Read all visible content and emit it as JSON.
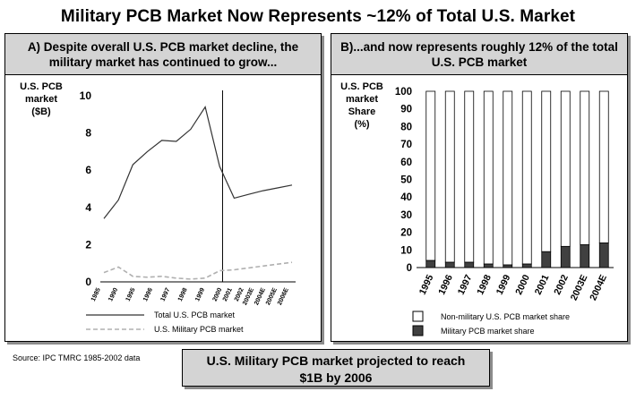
{
  "title": "Military PCB Market Now Represents ~12% of Total U.S. Market",
  "panel_a": {
    "header_line1": "A) Despite overall U.S. PCB market decline, the",
    "header_line2": "military market has continued to grow..."
  },
  "panel_b": {
    "header_line1": "B)...and now represents roughly 12% of the total",
    "header_line2": "U.S. PCB market"
  },
  "source": "Source:   IPC TMRC 1985-2002  data",
  "callout": {
    "line1": "U.S. Military PCB market projected to reach",
    "line2": "$1B by 2006"
  },
  "colors": {
    "panel_header": "#d4d4d4",
    "total_line": "#333333",
    "military_line": "#b0b0b0",
    "military_bar": "#404040",
    "shadow": "#8c8c8c"
  },
  "chart_data": [
    {
      "type": "line",
      "ylabel_lines": [
        "U.S. PCB",
        "market",
        "($B)"
      ],
      "ylim": [
        0,
        10
      ],
      "yticks": [
        0,
        2,
        4,
        6,
        8,
        10
      ],
      "x_categories": [
        "1985",
        "1990",
        "1995",
        "1996",
        "1997",
        "1998",
        "1999",
        "2000",
        "2001",
        "2002",
        "2003E",
        "2004E",
        "2005E",
        "2006E"
      ],
      "x_category_index": [
        0,
        1,
        2,
        3,
        4,
        5,
        6,
        7,
        8,
        9,
        10,
        11,
        12,
        13
      ],
      "x_label_positions": [
        0,
        1.2,
        2.4,
        3.6,
        4.8,
        6.0,
        7.2,
        8.4,
        9.1,
        9.9,
        10.6,
        11.4,
        12.2,
        13.0
      ],
      "divider_x": 8.2,
      "series": [
        {
          "name": "Total U.S. PCB market",
          "style": "solid",
          "points": [
            [
              0,
              3.4
            ],
            [
              1,
              4.4
            ],
            [
              2,
              6.3
            ],
            [
              3,
              7.0
            ],
            [
              4,
              7.6
            ],
            [
              5,
              7.55
            ],
            [
              6,
              8.2
            ],
            [
              7,
              9.4
            ],
            [
              8,
              6.2
            ],
            [
              9,
              4.5
            ],
            [
              10,
              4.7
            ],
            [
              11,
              4.9
            ],
            [
              12,
              5.05
            ],
            [
              13,
              5.2
            ]
          ]
        },
        {
          "name": "U.S. Military PCB market",
          "style": "dashed",
          "points": [
            [
              0,
              0.5
            ],
            [
              1,
              0.8
            ],
            [
              2,
              0.3
            ],
            [
              3,
              0.25
            ],
            [
              4,
              0.3
            ],
            [
              5,
              0.2
            ],
            [
              6,
              0.15
            ],
            [
              7,
              0.2
            ],
            [
              8,
              0.6
            ],
            [
              9,
              0.65
            ],
            [
              10,
              0.75
            ],
            [
              11,
              0.85
            ],
            [
              12,
              0.95
            ],
            [
              13,
              1.05
            ]
          ]
        }
      ],
      "legend": [
        "Total U.S. PCB market",
        "U.S. Military PCB market"
      ],
      "legend_position": "bottom"
    },
    {
      "type": "bar",
      "stacked": true,
      "ylabel_lines": [
        "U.S. PCB",
        "market",
        "Share",
        "(%)"
      ],
      "ylim": [
        0,
        100
      ],
      "yticks": [
        0,
        10,
        20,
        30,
        40,
        50,
        60,
        70,
        80,
        90,
        100
      ],
      "categories": [
        "1995",
        "1996",
        "1997",
        "1998",
        "1999",
        "2000",
        "2001",
        "2002",
        "2003E",
        "2004E"
      ],
      "series": [
        {
          "name": "Military PCB market share",
          "values": [
            4,
            3,
            3,
            2,
            1.5,
            2,
            9,
            12,
            13,
            14
          ]
        },
        {
          "name": "Non-military U.S. PCB market share",
          "values": [
            96,
            97,
            97,
            98,
            98.5,
            98,
            91,
            88,
            87,
            86
          ]
        }
      ],
      "legend": [
        "Non-military U.S. PCB market share",
        "Military PCB market share"
      ],
      "legend_position": "bottom"
    }
  ]
}
